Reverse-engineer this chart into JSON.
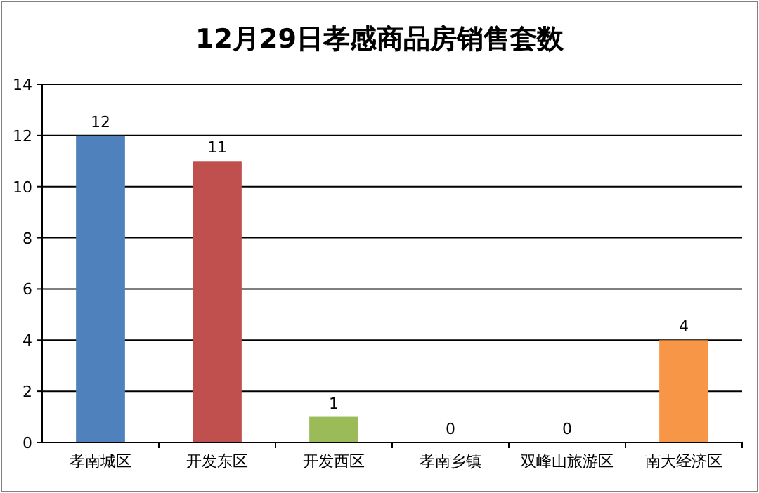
{
  "chart_data": {
    "type": "bar",
    "title": "12月29日孝感商品房销售套数",
    "categories": [
      "孝南城区",
      "开发东区",
      "开发西区",
      "孝南乡镇",
      "双峰山旅游区",
      "南大经济区"
    ],
    "values": [
      12,
      11,
      1,
      0,
      0,
      4
    ],
    "colors": [
      "#4f81bd",
      "#c0504d",
      "#9bbb59",
      "#8064a2",
      "#4bacc6",
      "#f79646"
    ],
    "ylim": [
      0,
      14
    ],
    "yticks": [
      0,
      2,
      4,
      6,
      8,
      10,
      12,
      14
    ],
    "grid": "y",
    "data_labels": true
  }
}
